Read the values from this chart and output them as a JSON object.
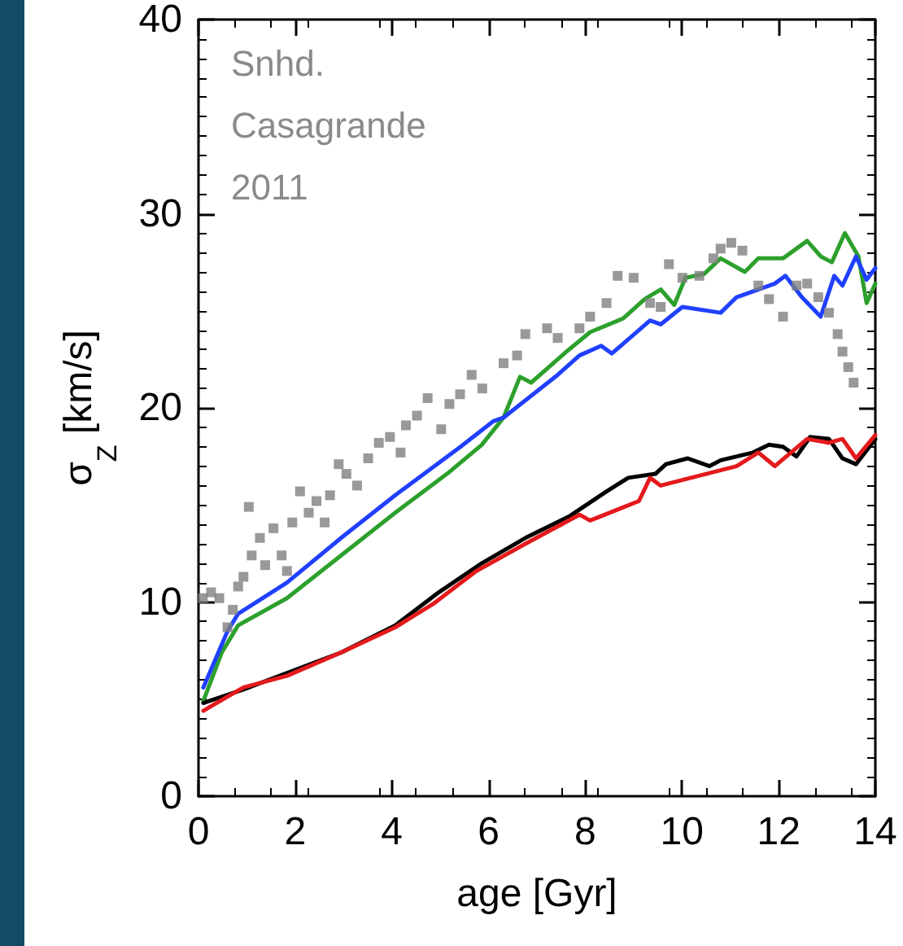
{
  "chart_data": {
    "type": "line",
    "xlabel": "age [Gyr]",
    "ylabel": "σ$_{Z}$ [km/s]",
    "annotations": [
      "Snhd.",
      "Casagrande",
      "2011"
    ],
    "xlim": [
      0,
      14
    ],
    "xticks": [
      0,
      2,
      4,
      6,
      8,
      10,
      12,
      14
    ],
    "ylim": [
      0,
      40
    ],
    "yticks": [
      0,
      10,
      20,
      30,
      40
    ],
    "line_style": "solid",
    "series": [
      {
        "type": "scatter",
        "marker": "square",
        "color": "#808080",
        "x": [
          0.09,
          0.26,
          0.43,
          0.6,
          0.71,
          0.82,
          0.93,
          1.04,
          1.1,
          1.27,
          1.38,
          1.55,
          1.72,
          1.83,
          1.94,
          2.1,
          2.28,
          2.44,
          2.61,
          2.72,
          2.9,
          3.06,
          3.28,
          3.51,
          3.73,
          3.96,
          4.18,
          4.29,
          4.52,
          4.74,
          5.02,
          5.19,
          5.41,
          5.65,
          5.87,
          6.31,
          6.59,
          6.76,
          7.21,
          7.43,
          7.88,
          8.1,
          8.44,
          8.67,
          9.0,
          9.34,
          9.56,
          9.73,
          10.01,
          10.36,
          10.65,
          10.8,
          11.02,
          11.25,
          11.58,
          11.8,
          12.09,
          12.37,
          12.59,
          12.82,
          13.04,
          13.22,
          13.32,
          13.44,
          13.55
        ],
        "values": [
          10.2,
          10.5,
          10.2,
          8.7,
          9.6,
          10.8,
          11.3,
          14.9,
          12.4,
          13.3,
          11.9,
          13.8,
          12.4,
          11.6,
          14.1,
          15.7,
          14.6,
          15.2,
          14.1,
          15.5,
          17.1,
          16.6,
          16.0,
          17.4,
          18.2,
          18.5,
          17.7,
          19.1,
          19.6,
          20.5,
          18.9,
          20.2,
          20.7,
          21.7,
          21.0,
          22.3,
          22.7,
          23.8,
          24.1,
          23.6,
          24.1,
          24.7,
          25.4,
          26.8,
          26.7,
          25.4,
          25.2,
          27.4,
          26.7,
          26.8,
          27.7,
          28.2,
          28.5,
          28.1,
          26.3,
          25.6,
          24.7,
          26.3,
          26.4,
          25.7,
          24.9,
          23.8,
          22.9,
          22.1,
          21.3
        ]
      },
      {
        "color": "#2ca02c",
        "x": [
          0.1,
          0.48,
          0.82,
          1.83,
          2.95,
          4.07,
          5.19,
          5.86,
          6.31,
          6.65,
          6.88,
          7.66,
          8.1,
          8.78,
          9.23,
          9.56,
          9.84,
          10.07,
          10.46,
          10.8,
          11.3,
          11.58,
          12.09,
          12.59,
          12.87,
          13.1,
          13.37,
          13.65,
          13.82,
          14.0
        ],
        "values": [
          4.9,
          7.4,
          8.8,
          10.2,
          12.4,
          14.6,
          16.7,
          18.1,
          19.5,
          21.6,
          21.3,
          23.0,
          23.9,
          24.6,
          25.6,
          26.1,
          25.3,
          26.7,
          26.9,
          27.7,
          27.0,
          27.7,
          27.7,
          28.6,
          27.8,
          27.5,
          29.0,
          27.8,
          25.4,
          26.4
        ]
      },
      {
        "color": "#2040ff",
        "x": [
          0.1,
          0.6,
          0.82,
          1.83,
          2.95,
          4.07,
          5.42,
          6.09,
          6.31,
          7.43,
          7.88,
          8.33,
          8.55,
          9.34,
          9.56,
          10.01,
          10.8,
          11.13,
          11.92,
          12.14,
          12.48,
          12.87,
          13.15,
          13.32,
          13.6,
          13.82,
          14.0
        ],
        "values": [
          5.6,
          8.5,
          9.4,
          11.0,
          13.3,
          15.5,
          18.0,
          19.3,
          19.5,
          21.7,
          22.7,
          23.2,
          22.8,
          24.5,
          24.3,
          25.2,
          24.9,
          25.7,
          26.4,
          26.8,
          25.7,
          24.7,
          26.8,
          26.3,
          27.8,
          26.6,
          27.2
        ]
      },
      {
        "color": "#000000",
        "x": [
          0.1,
          0.93,
          2.95,
          4.07,
          4.97,
          5.86,
          6.76,
          7.66,
          8.44,
          8.89,
          9.45,
          9.67,
          10.12,
          10.57,
          10.8,
          11.47,
          11.8,
          12.09,
          12.37,
          12.65,
          13.04,
          13.32,
          13.6,
          14.0
        ],
        "values": [
          4.8,
          5.5,
          7.4,
          8.8,
          10.5,
          12.0,
          13.3,
          14.4,
          15.7,
          16.4,
          16.6,
          17.1,
          17.4,
          17.0,
          17.3,
          17.7,
          18.1,
          18.0,
          17.5,
          18.5,
          18.4,
          17.4,
          17.1,
          18.4
        ]
      },
      {
        "color": "#e41a1c",
        "x": [
          0.1,
          0.93,
          1.83,
          2.95,
          4.07,
          4.85,
          5.75,
          6.76,
          7.88,
          8.1,
          9.11,
          9.34,
          9.56,
          11.13,
          11.58,
          11.92,
          12.59,
          13.04,
          13.32,
          13.6,
          14.0
        ],
        "values": [
          4.4,
          5.6,
          6.2,
          7.4,
          8.7,
          9.9,
          11.6,
          13.0,
          14.5,
          14.2,
          15.2,
          16.4,
          16.0,
          17.0,
          17.7,
          17.0,
          18.4,
          18.2,
          18.4,
          17.4,
          18.6
        ]
      }
    ]
  }
}
